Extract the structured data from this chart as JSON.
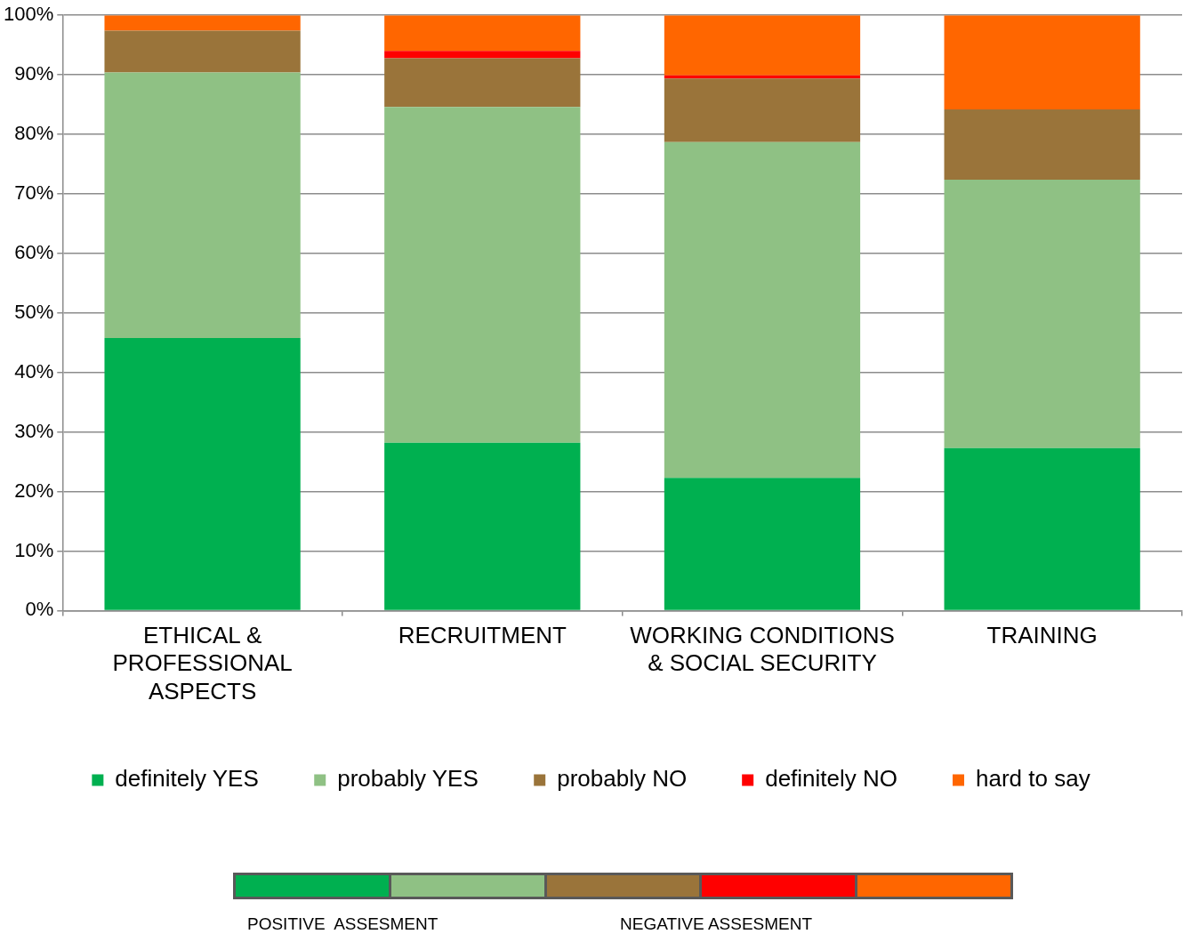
{
  "chart_data": {
    "type": "bar",
    "stacked": true,
    "categories": [
      "ETHICAL & PROFESSIONAL ASPECTS",
      "RECRUITMENT",
      "WORKING CONDITIONS & SOCIAL SECURITY",
      "TRAINING"
    ],
    "series": [
      {
        "name": "definitely YES",
        "color": "#00b050",
        "values": [
          45.8,
          28.2,
          22.3,
          27.3
        ]
      },
      {
        "name": "probably YES",
        "color": "#8fc184",
        "values": [
          44.6,
          56.4,
          56.4,
          45.1
        ]
      },
      {
        "name": "probably NO",
        "color": "#9a743a",
        "values": [
          7.0,
          8.2,
          10.7,
          11.8
        ]
      },
      {
        "name": "definitely NO",
        "color": "#ff0000",
        "values": [
          0,
          1.2,
          0.5,
          0
        ]
      },
      {
        "name": "hard to say",
        "color": "#ff6600",
        "values": [
          2.6,
          6.0,
          10.1,
          15.8
        ]
      }
    ],
    "ylim": [
      0,
      100
    ],
    "yticks": [
      {
        "value": 0,
        "label": "0%"
      },
      {
        "value": 10,
        "label": "10%"
      },
      {
        "value": 20,
        "label": "20%"
      },
      {
        "value": 30,
        "label": "30%"
      },
      {
        "value": 40,
        "label": "40%"
      },
      {
        "value": 50,
        "label": "50%"
      },
      {
        "value": 60,
        "label": "60%"
      },
      {
        "value": 70,
        "label": "70%"
      },
      {
        "value": 80,
        "label": "80%"
      },
      {
        "value": 90,
        "label": "90%"
      },
      {
        "value": 100,
        "label": "100%"
      }
    ],
    "grid": "y",
    "legend": "bottom",
    "annotations": [
      "POSITIVE  ASSESMENT",
      "NEGATIVE ASSESMENT"
    ]
  }
}
